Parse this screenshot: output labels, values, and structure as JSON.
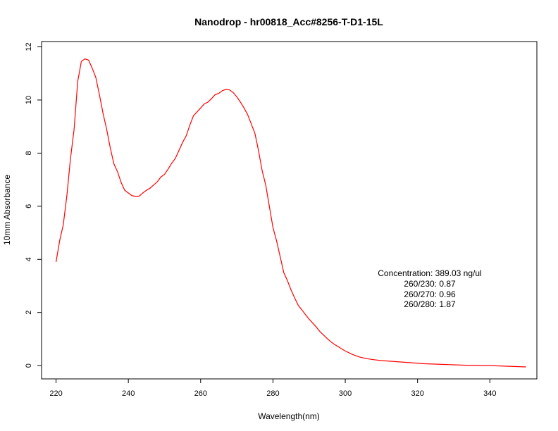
{
  "chart_data": {
    "type": "line",
    "title": "Nanodrop - hr00818_Acc#8256-T-D1-15L",
    "xlabel": "Wavelength(nm)",
    "ylabel": "10mm Absorbance",
    "xlim": [
      216,
      353
    ],
    "ylim": [
      -0.5,
      12.2
    ],
    "xticks": [
      220,
      240,
      260,
      280,
      300,
      320,
      340
    ],
    "yticks": [
      0,
      2,
      4,
      6,
      8,
      10,
      12
    ],
    "grid": false,
    "line_color": "#ff0000",
    "series": [
      {
        "x": [
          220,
          221,
          222,
          223,
          224,
          225,
          226,
          227,
          228,
          229,
          230,
          231,
          232,
          233,
          234,
          235,
          236,
          237,
          238,
          239,
          240,
          241,
          242,
          243,
          244,
          245,
          246,
          247,
          248,
          249,
          250,
          251,
          252,
          253,
          254,
          255,
          256,
          257,
          258,
          259,
          260,
          261,
          262,
          263,
          264,
          265,
          266,
          267,
          268,
          269,
          270,
          271,
          272,
          273,
          274,
          275,
          276,
          277,
          278,
          279,
          280,
          281,
          282,
          283,
          284,
          285,
          286,
          287,
          288,
          289,
          290,
          291,
          292,
          293,
          294,
          295,
          296,
          297,
          298,
          299,
          300,
          302,
          304,
          306,
          308,
          310,
          312,
          314,
          316,
          318,
          320,
          322,
          324,
          326,
          328,
          330,
          332,
          334,
          336,
          338,
          340,
          342,
          344,
          346,
          348,
          350
        ],
        "y": [
          3.9,
          4.7,
          5.3,
          6.4,
          7.8,
          8.9,
          10.7,
          11.45,
          11.55,
          11.5,
          11.2,
          10.85,
          10.2,
          9.5,
          8.9,
          8.2,
          7.6,
          7.3,
          6.9,
          6.6,
          6.5,
          6.4,
          6.37,
          6.38,
          6.5,
          6.6,
          6.68,
          6.8,
          6.92,
          7.1,
          7.2,
          7.4,
          7.62,
          7.8,
          8.1,
          8.4,
          8.65,
          9.05,
          9.4,
          9.55,
          9.7,
          9.85,
          9.92,
          10.05,
          10.2,
          10.25,
          10.35,
          10.4,
          10.38,
          10.28,
          10.12,
          9.92,
          9.7,
          9.45,
          9.1,
          8.75,
          8.1,
          7.35,
          6.8,
          6.0,
          5.2,
          4.7,
          4.1,
          3.5,
          3.2,
          2.85,
          2.55,
          2.27,
          2.1,
          1.92,
          1.75,
          1.6,
          1.45,
          1.28,
          1.15,
          1.02,
          0.9,
          0.8,
          0.72,
          0.63,
          0.55,
          0.42,
          0.32,
          0.26,
          0.22,
          0.19,
          0.17,
          0.15,
          0.13,
          0.11,
          0.09,
          0.07,
          0.06,
          0.05,
          0.04,
          0.03,
          0.02,
          0.01,
          0.01,
          0.0,
          0.0,
          -0.01,
          -0.02,
          -0.03,
          -0.04,
          -0.05
        ]
      }
    ]
  },
  "annotation": {
    "lines": [
      "Concentration: 389.03 ng/ul",
      "260/230: 0.87",
      "260/270: 0.96",
      "260/280: 1.87"
    ]
  }
}
